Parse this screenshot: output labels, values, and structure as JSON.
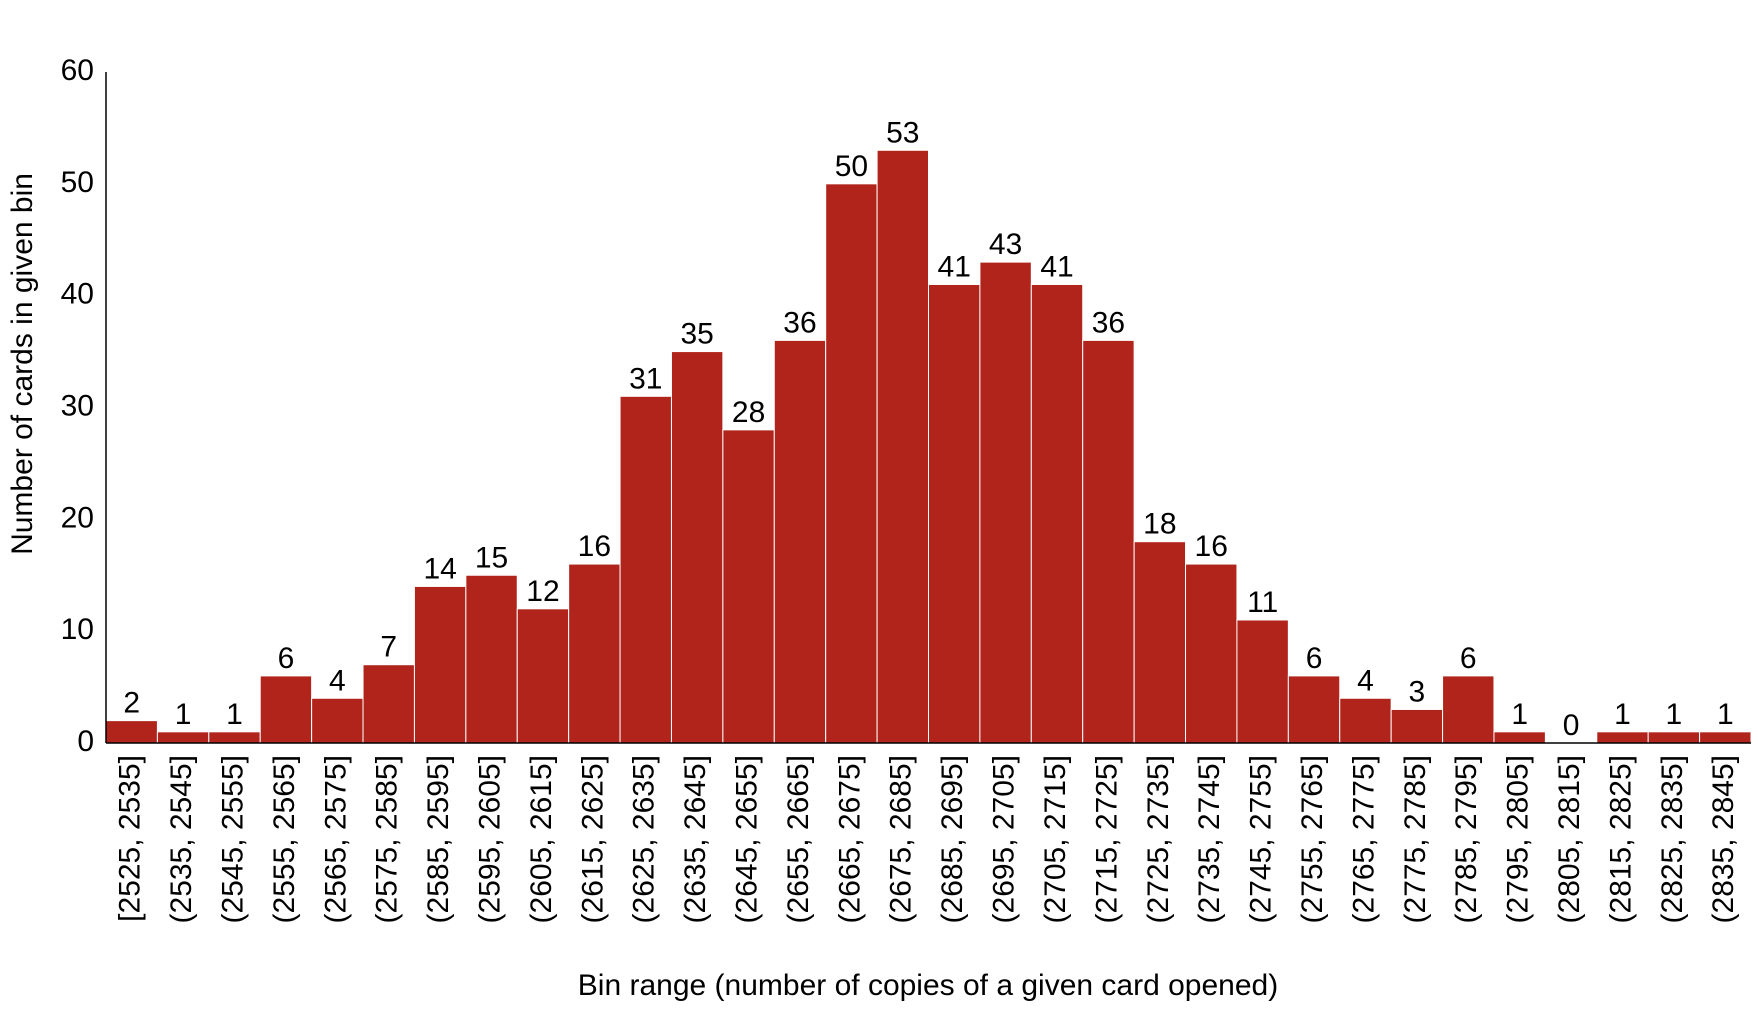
{
  "chart_data": {
    "type": "bar",
    "title": "",
    "xlabel": "Bin range (number of copies of a given card opened)",
    "ylabel": "Number of cards in given bin",
    "ylim": [
      0,
      60
    ],
    "yticks": [
      0,
      10,
      20,
      30,
      40,
      50,
      60
    ],
    "grid": false,
    "bar_color": "#b0241b",
    "categories": [
      "[2525, 2535]",
      "(2535, 2545]",
      "(2545, 2555]",
      "(2555, 2565]",
      "(2565, 2575]",
      "(2575, 2585]",
      "(2585, 2595]",
      "(2595, 2605]",
      "(2605, 2615]",
      "(2615, 2625]",
      "(2625, 2635]",
      "(2635, 2645]",
      "(2645, 2655]",
      "(2655, 2665]",
      "(2665, 2675]",
      "(2675, 2685]",
      "(2685, 2695]",
      "(2695, 2705]",
      "(2705, 2715]",
      "(2715, 2725]",
      "(2725, 2735]",
      "(2735, 2745]",
      "(2745, 2755]",
      "(2755, 2765]",
      "(2765, 2775]",
      "(2775, 2785]",
      "(2785, 2795]",
      "(2795, 2805]",
      "(2805, 2815]",
      "(2815, 2825]",
      "(2825, 2835]",
      "(2835, 2845]"
    ],
    "values": [
      2,
      1,
      1,
      6,
      4,
      7,
      14,
      15,
      12,
      16,
      31,
      35,
      28,
      36,
      50,
      53,
      41,
      43,
      41,
      36,
      18,
      16,
      11,
      6,
      4,
      3,
      6,
      1,
      0,
      1,
      1,
      1
    ]
  }
}
